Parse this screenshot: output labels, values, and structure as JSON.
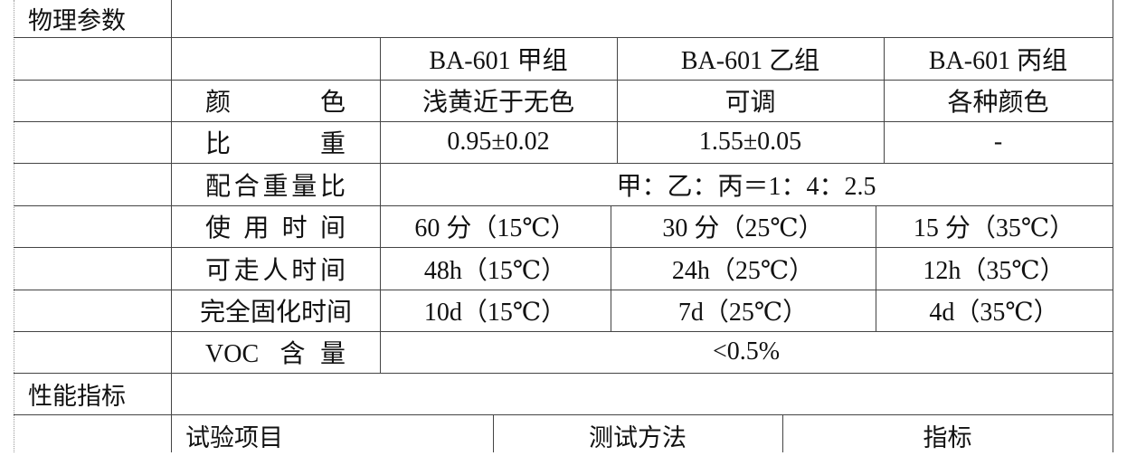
{
  "sections": {
    "physical": "物理参数",
    "performance": "性能指标"
  },
  "physical": {
    "headers": [
      "BA-601 甲组",
      "BA-601 乙组",
      "BA-601 丙组"
    ],
    "rows": [
      {
        "label": "颜色",
        "values": [
          "浅黄近于无色",
          "可调",
          "各种颜色"
        ]
      },
      {
        "label": "比重",
        "values": [
          "0.95±0.02",
          "1.55±0.05",
          "-"
        ]
      },
      {
        "label": "配合重量比",
        "values": [
          "甲：乙：丙＝1：4：2.5"
        ]
      },
      {
        "label": "使用时间",
        "values": [
          "60 分（15℃）",
          "30 分（25℃）",
          "15 分（35℃）"
        ]
      },
      {
        "label": "可走人时间",
        "values": [
          "48h（15℃）",
          "24h（25℃）",
          "12h（35℃）"
        ]
      },
      {
        "label": "完全固化时间",
        "values": [
          "10d（15℃）",
          "7d（25℃）",
          "4d（35℃）"
        ]
      },
      {
        "label": "VOC 含量",
        "values": [
          "<0.5%"
        ]
      }
    ]
  },
  "performance": {
    "headers": [
      "试验项目",
      "测试方法",
      "指标"
    ]
  }
}
